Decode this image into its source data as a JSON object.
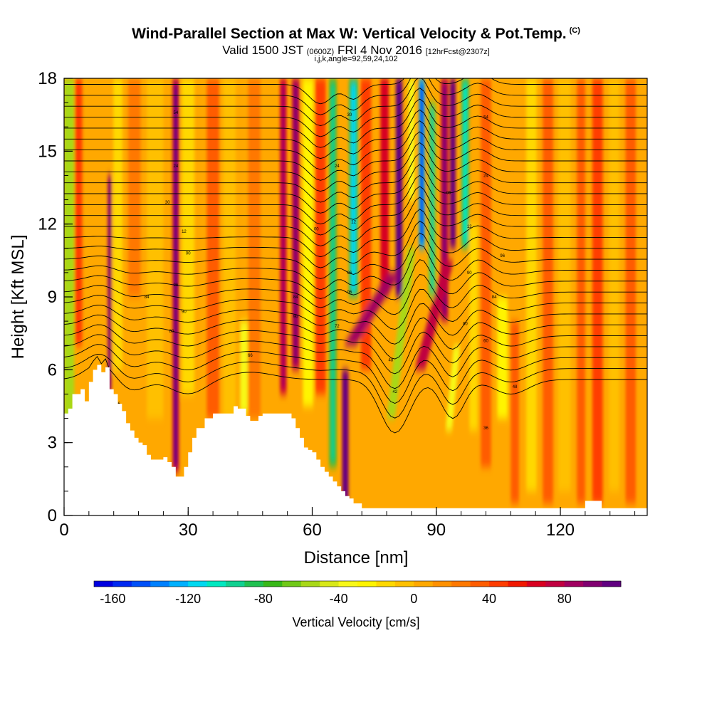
{
  "titles": {
    "main": "Wind-Parallel Section at Max W: Vertical Velocity & Pot.Temp.",
    "copyright": "(C)",
    "valid_prefix": "Valid 1500 JST",
    "utc": "(0600Z)",
    "date": "FRI 4 Nov 2016",
    "forecast": "[12hrFcst@2307z]",
    "indices": "i,j,k,angle=92,59,24,102"
  },
  "chart_data": {
    "type": "heatmap",
    "title": "Wind-Parallel Section at Max W: Vertical Velocity & Pot.Temp.",
    "xlabel": "Distance [nm]",
    "ylabel": "Height [Kft MSL]",
    "xlim": [
      0,
      141
    ],
    "ylim": [
      0,
      18
    ],
    "xticks": [
      "0",
      "30",
      "60",
      "90",
      "120"
    ],
    "yticks": [
      "0",
      "3",
      "6",
      "9",
      "12",
      "15",
      "18"
    ],
    "colorbar": {
      "label": "Vertical Velocity [cm/s]",
      "ticks": [
        "-160",
        "-120",
        "-80",
        "-40",
        "0",
        "40",
        "80"
      ],
      "min": -170,
      "max": 110,
      "step": 10,
      "colors": [
        "#0000e0",
        "#0028f0",
        "#0050f8",
        "#0080ff",
        "#00b0ff",
        "#00d8f0",
        "#00e8c0",
        "#10d090",
        "#20c050",
        "#38b818",
        "#70c818",
        "#a8d818",
        "#d8e818",
        "#f8f818",
        "#fff400",
        "#ffd800",
        "#ffc000",
        "#ffa800",
        "#ff9000",
        "#ff7800",
        "#ff5c00",
        "#ff3c00",
        "#f01800",
        "#d80020",
        "#c00040",
        "#a00060",
        "#800070",
        "#600080"
      ]
    },
    "terrain_kft": [
      [
        0,
        4.2
      ],
      [
        1,
        4.4
      ],
      [
        2,
        5.0
      ],
      [
        4,
        5.2
      ],
      [
        5,
        4.7
      ],
      [
        6,
        5.5
      ],
      [
        7,
        6.0
      ],
      [
        8,
        6.2
      ],
      [
        9,
        5.9
      ],
      [
        10,
        6.1
      ],
      [
        11,
        5.2
      ],
      [
        12,
        5.0
      ],
      [
        13,
        4.6
      ],
      [
        14,
        4.3
      ],
      [
        15,
        3.8
      ],
      [
        16,
        3.5
      ],
      [
        17,
        3.2
      ],
      [
        18,
        3.0
      ],
      [
        19,
        2.9
      ],
      [
        20,
        2.5
      ],
      [
        21,
        2.3
      ],
      [
        22,
        2.3
      ],
      [
        23,
        2.3
      ],
      [
        24,
        2.4
      ],
      [
        25,
        2.2
      ],
      [
        26,
        2.0
      ],
      [
        27,
        1.6
      ],
      [
        28,
        1.6
      ],
      [
        29,
        2.0
      ],
      [
        30,
        2.6
      ],
      [
        31,
        3.2
      ],
      [
        32,
        3.6
      ],
      [
        34,
        4.0
      ],
      [
        36,
        4.2
      ],
      [
        38,
        4.2
      ],
      [
        40,
        4.2
      ],
      [
        41,
        4.5
      ],
      [
        42,
        4.4
      ],
      [
        44,
        4.1
      ],
      [
        45,
        3.9
      ],
      [
        46,
        3.9
      ],
      [
        47,
        4.1
      ],
      [
        48,
        4.2
      ],
      [
        50,
        4.2
      ],
      [
        54,
        4.2
      ],
      [
        55,
        4.0
      ],
      [
        56,
        3.6
      ],
      [
        57,
        3.2
      ],
      [
        58,
        2.8
      ],
      [
        59,
        2.7
      ],
      [
        60,
        2.6
      ],
      [
        61,
        2.3
      ],
      [
        62,
        2.0
      ],
      [
        63,
        1.8
      ],
      [
        64,
        1.6
      ],
      [
        65,
        1.4
      ],
      [
        66,
        1.2
      ],
      [
        67,
        1.0
      ],
      [
        68,
        0.8
      ],
      [
        69,
        0.7
      ],
      [
        70,
        0.5
      ],
      [
        72,
        0.3
      ],
      [
        76,
        0.3
      ],
      [
        80,
        0.3
      ],
      [
        90,
        0.3
      ],
      [
        100,
        0.3
      ],
      [
        110,
        0.3
      ],
      [
        125,
        0.3
      ],
      [
        126,
        0.6
      ],
      [
        129,
        0.6
      ],
      [
        130,
        0.3
      ],
      [
        141,
        0.3
      ]
    ],
    "bands": [
      {
        "x": 1.2,
        "w": 2.5,
        "v": -55,
        "z0": 3.5,
        "z1": 18
      },
      {
        "x": 3.5,
        "w": 1.8,
        "v": 40,
        "z0": 7,
        "z1": 18
      },
      {
        "x": 11,
        "w": 0.9,
        "v": 85,
        "z0": 5,
        "z1": 14
      },
      {
        "x": 13,
        "w": 2.2,
        "v": -12,
        "z0": 6,
        "z1": 18
      },
      {
        "x": 17,
        "w": 3,
        "v": 22,
        "z0": 9,
        "z1": 18
      },
      {
        "x": 22,
        "w": 4,
        "v": -8,
        "z0": 4,
        "z1": 18
      },
      {
        "x": 27,
        "w": 1.6,
        "v": 78,
        "z0": 1.8,
        "z1": 18
      },
      {
        "x": 30,
        "w": 3,
        "v": -20,
        "z0": 5,
        "z1": 18
      },
      {
        "x": 36,
        "w": 3,
        "v": 30,
        "z0": 4,
        "z1": 18
      },
      {
        "x": 40,
        "w": 3,
        "v": -5,
        "z0": 4,
        "z1": 18
      },
      {
        "x": 43.5,
        "w": 1.8,
        "v": -32,
        "z0": 4.2,
        "z1": 8
      },
      {
        "x": 46,
        "w": 3,
        "v": 28,
        "z0": 4,
        "z1": 18
      },
      {
        "x": 53,
        "w": 1.6,
        "v": 62,
        "z0": 5,
        "z1": 18
      },
      {
        "x": 56,
        "w": 1.8,
        "v": 72,
        "z0": 6,
        "z1": 18
      },
      {
        "x": 59,
        "w": 2.5,
        "v": -30,
        "z0": 4.5,
        "z1": 18
      },
      {
        "x": 62,
        "w": 2.5,
        "v": 40,
        "z0": 5,
        "z1": 18
      },
      {
        "x": 65,
        "w": 1.8,
        "v": -75,
        "z0": 2,
        "z1": 18
      },
      {
        "x": 68,
        "w": 1.6,
        "v": 95,
        "z0": 0.5,
        "z1": 6
      },
      {
        "x": 70,
        "w": 2.2,
        "v": -90,
        "z0": 9,
        "z1": 18
      },
      {
        "x": 73,
        "w": 2.5,
        "v": 40,
        "z0": 6,
        "z1": 18
      },
      {
        "x": 77.5,
        "w": 2,
        "v": 60,
        "z0": 9,
        "z1": 18
      },
      {
        "x": 81,
        "w": 1.6,
        "v": 110,
        "z0": 9,
        "z1": 18
      },
      {
        "x": 84,
        "w": 1.5,
        "v": -40,
        "z0": 13,
        "z1": 18
      },
      {
        "x": 86.5,
        "w": 1.4,
        "v": -130,
        "z0": 11,
        "z1": 18
      },
      {
        "x": 89,
        "w": 1.8,
        "v": -70,
        "z0": 9,
        "z1": 17
      },
      {
        "x": 92,
        "w": 1.8,
        "v": 70,
        "z0": 8,
        "z1": 18
      },
      {
        "x": 94,
        "w": 1.4,
        "v": 95,
        "z0": 11,
        "z1": 18
      },
      {
        "x": 97,
        "w": 1.8,
        "v": -85,
        "z0": 11,
        "z1": 18
      },
      {
        "x": 99,
        "w": 2,
        "v": -20,
        "z0": 3.5,
        "z1": 12
      },
      {
        "x": 102,
        "w": 2.5,
        "v": 32,
        "z0": 2,
        "z1": 18
      },
      {
        "x": 106,
        "w": 2.5,
        "v": -25,
        "z0": 4,
        "z1": 9
      },
      {
        "x": 109,
        "w": 2,
        "v": 36,
        "z0": 0.5,
        "z1": 8
      },
      {
        "x": 113,
        "w": 2.5,
        "v": -14,
        "z0": 1,
        "z1": 18
      },
      {
        "x": 117,
        "w": 2.5,
        "v": 38,
        "z0": 0.5,
        "z1": 18
      },
      {
        "x": 121,
        "w": 3,
        "v": -8,
        "z0": 1,
        "z1": 18
      },
      {
        "x": 125,
        "w": 2,
        "v": 36,
        "z0": 0.5,
        "z1": 18
      },
      {
        "x": 129,
        "w": 2.5,
        "v": 42,
        "z0": 0.5,
        "z1": 18
      },
      {
        "x": 133,
        "w": 2.5,
        "v": -10,
        "z0": 1,
        "z1": 18
      },
      {
        "x": 137,
        "w": 2.5,
        "v": 30,
        "z0": 0.5,
        "z1": 18
      }
    ],
    "tilted_bands": [
      {
        "x_bottom": 69,
        "z_bottom": 7,
        "x_top": 80,
        "z_top": 10,
        "w": 3,
        "v": 80
      },
      {
        "x_bottom": 79,
        "z_bottom": 4,
        "x_top": 84,
        "z_top": 11,
        "w": 2,
        "v": -60
      },
      {
        "x_bottom": 86,
        "z_bottom": 6,
        "x_top": 93,
        "z_top": 10.5,
        "w": 2.5,
        "v": 70
      },
      {
        "x_bottom": 93,
        "z_bottom": 3.5,
        "x_top": 95,
        "z_top": 7,
        "w": 1.6,
        "v": -35
      }
    ],
    "isentropes": {
      "z_start_kft": 5.6,
      "z_spacing_kft": 0.45,
      "count": 28,
      "labels": [
        {
          "x": 27,
          "z": 16.6,
          "text": "54"
        },
        {
          "x": 27,
          "z": 14.4,
          "text": "24"
        },
        {
          "x": 25,
          "z": 12.9,
          "text": "30"
        },
        {
          "x": 29,
          "z": 11.7,
          "text": "12"
        },
        {
          "x": 30,
          "z": 10.8,
          "text": "00"
        },
        {
          "x": 27,
          "z": 9.5,
          "text": "96"
        },
        {
          "x": 29,
          "z": 8.4,
          "text": "90"
        },
        {
          "x": 26,
          "z": 7.6,
          "text": "80"
        },
        {
          "x": 20,
          "z": 9.0,
          "text": "84"
        },
        {
          "x": 13,
          "z": 4.6,
          "text": "66"
        },
        {
          "x": 45,
          "z": 6.6,
          "text": "66"
        },
        {
          "x": 56,
          "z": 8.2,
          "text": "90"
        },
        {
          "x": 56,
          "z": 9.0,
          "text": "84"
        },
        {
          "x": 61,
          "z": 11.8,
          "text": "00"
        },
        {
          "x": 66,
          "z": 7.8,
          "text": "72"
        },
        {
          "x": 69,
          "z": 10.0,
          "text": "06"
        },
        {
          "x": 69,
          "z": 9.2,
          "text": "06"
        },
        {
          "x": 70,
          "z": 12.1,
          "text": "12"
        },
        {
          "x": 66,
          "z": 14.4,
          "text": "24"
        },
        {
          "x": 69,
          "z": 16.5,
          "text": "30"
        },
        {
          "x": 79,
          "z": 6.4,
          "text": "48"
        },
        {
          "x": 80,
          "z": 5.1,
          "text": "42"
        },
        {
          "x": 93,
          "z": 13.3,
          "text": "06"
        },
        {
          "x": 98,
          "z": 11.9,
          "text": "12"
        },
        {
          "x": 98,
          "z": 10.0,
          "text": "90"
        },
        {
          "x": 102,
          "z": 14.0,
          "text": "24"
        },
        {
          "x": 102,
          "z": 16.4,
          "text": "54"
        },
        {
          "x": 104,
          "z": 9.0,
          "text": "84"
        },
        {
          "x": 106,
          "z": 10.7,
          "text": "96"
        },
        {
          "x": 97,
          "z": 7.9,
          "text": "60"
        },
        {
          "x": 102,
          "z": 7.2,
          "text": "60"
        },
        {
          "x": 109,
          "z": 5.3,
          "text": "48"
        },
        {
          "x": 102,
          "z": 3.6,
          "text": "36"
        }
      ]
    }
  }
}
